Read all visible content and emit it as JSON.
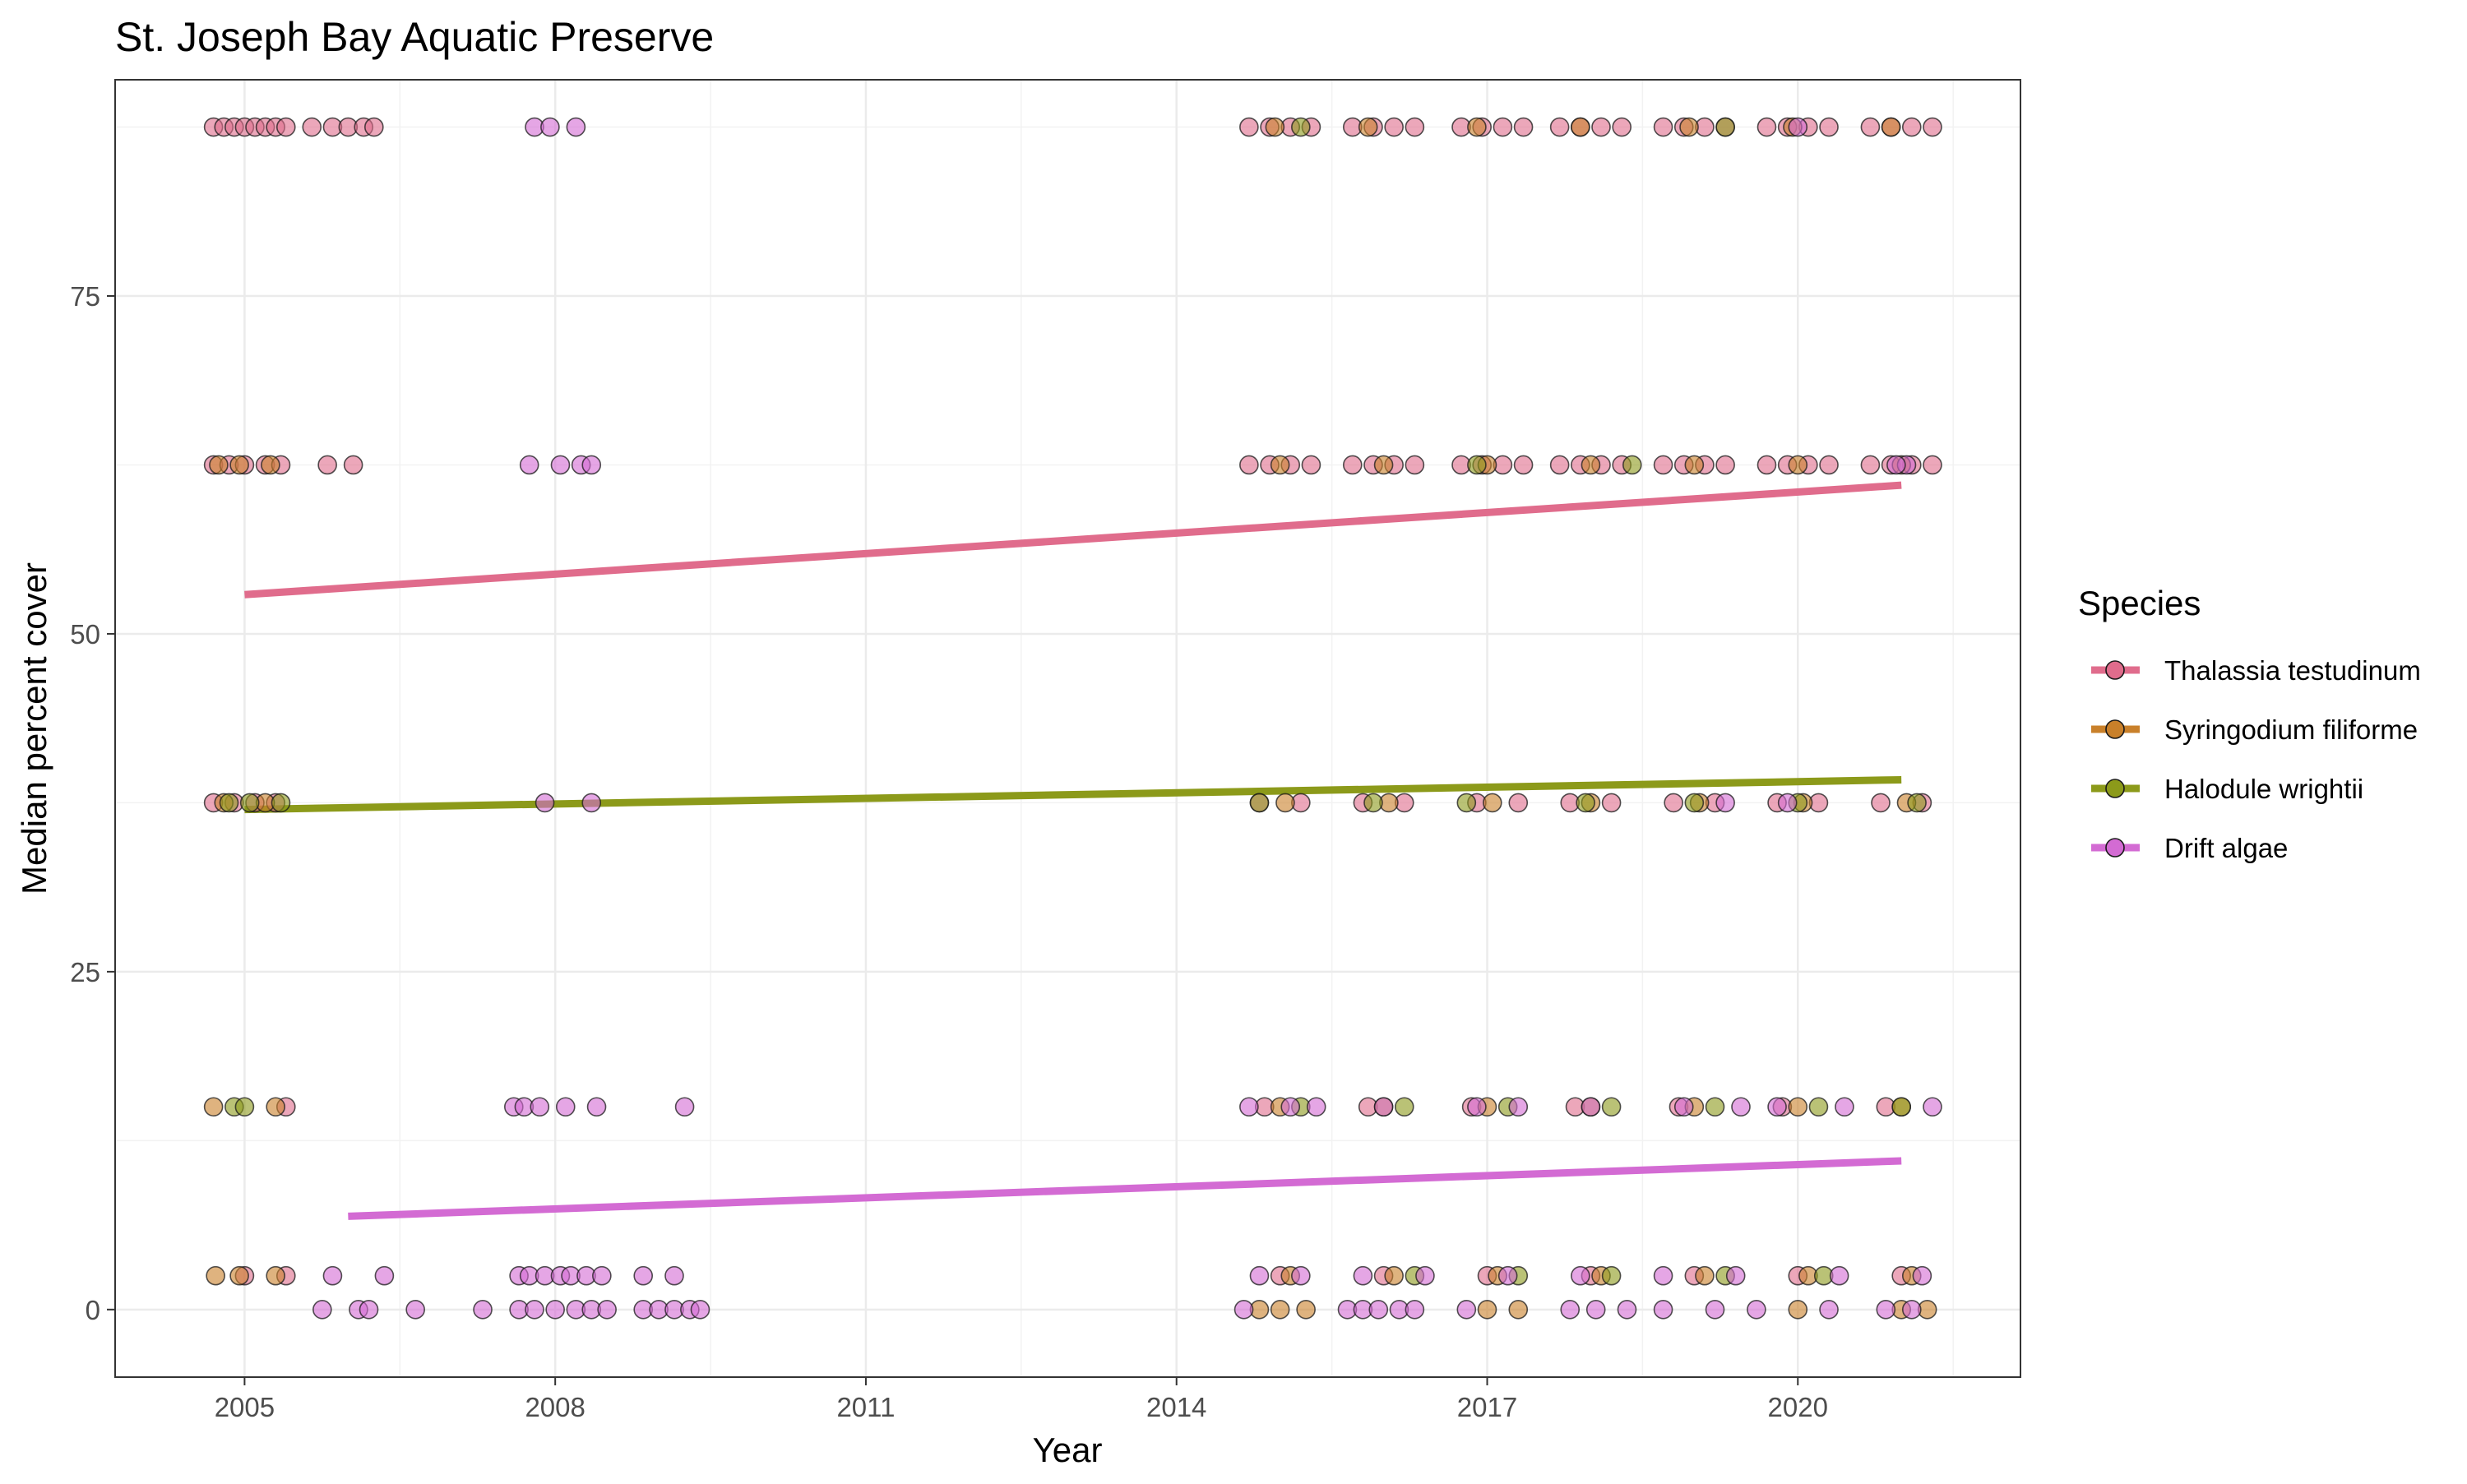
{
  "chart_data": {
    "type": "scatter",
    "title": "St. Joseph Bay Aquatic Preserve",
    "xlabel": "Year",
    "ylabel": "Median percent cover",
    "xlim": [
      2003.75,
      2022.15
    ],
    "ylim": [
      -5,
      91
    ],
    "x_ticks": [
      2005,
      2008,
      2011,
      2014,
      2017,
      2020
    ],
    "y_ticks": [
      0,
      25,
      50,
      75
    ],
    "grid": true,
    "legend_title": "Species",
    "legend_position": "right",
    "cover_levels": [
      0,
      2.5,
      15,
      37.5,
      62.5,
      87.5
    ],
    "series": [
      {
        "name": "Thalassia testudinum",
        "color": "#E06C8C",
        "trend": {
          "x": [
            2005.0,
            2021.0
          ],
          "y": [
            52.9,
            61.0
          ]
        },
        "points": [
          [
            2004.7,
            87.5
          ],
          [
            2004.8,
            87.5
          ],
          [
            2004.9,
            87.5
          ],
          [
            2005.0,
            87.5
          ],
          [
            2005.1,
            87.5
          ],
          [
            2005.2,
            87.5
          ],
          [
            2005.3,
            87.5
          ],
          [
            2005.4,
            87.5
          ],
          [
            2005.65,
            87.5
          ],
          [
            2005.85,
            87.5
          ],
          [
            2006.0,
            87.5
          ],
          [
            2006.15,
            87.5
          ],
          [
            2006.25,
            87.5
          ],
          [
            2004.7,
            62.5
          ],
          [
            2004.85,
            62.5
          ],
          [
            2005.0,
            62.5
          ],
          [
            2005.2,
            62.5
          ],
          [
            2005.35,
            62.5
          ],
          [
            2005.8,
            62.5
          ],
          [
            2006.05,
            62.5
          ],
          [
            2004.7,
            37.5
          ],
          [
            2004.9,
            37.5
          ],
          [
            2005.1,
            37.5
          ],
          [
            2005.3,
            37.5
          ],
          [
            2005.4,
            15
          ],
          [
            2005.4,
            2.5
          ],
          [
            2005.0,
            2.5
          ],
          [
            2014.7,
            87.5
          ],
          [
            2014.9,
            87.5
          ],
          [
            2015.1,
            87.5
          ],
          [
            2015.3,
            87.5
          ],
          [
            2015.7,
            87.5
          ],
          [
            2015.9,
            87.5
          ],
          [
            2016.1,
            87.5
          ],
          [
            2016.3,
            87.5
          ],
          [
            2016.75,
            87.5
          ],
          [
            2016.95,
            87.5
          ],
          [
            2017.15,
            87.5
          ],
          [
            2017.35,
            87.5
          ],
          [
            2017.7,
            87.5
          ],
          [
            2017.9,
            87.5
          ],
          [
            2018.1,
            87.5
          ],
          [
            2018.3,
            87.5
          ],
          [
            2018.7,
            87.5
          ],
          [
            2018.9,
            87.5
          ],
          [
            2019.1,
            87.5
          ],
          [
            2019.3,
            87.5
          ],
          [
            2019.7,
            87.5
          ],
          [
            2019.9,
            87.5
          ],
          [
            2020.1,
            87.5
          ],
          [
            2020.3,
            87.5
          ],
          [
            2020.7,
            87.5
          ],
          [
            2020.9,
            87.5
          ],
          [
            2021.1,
            87.5
          ],
          [
            2021.3,
            87.5
          ],
          [
            2014.7,
            62.5
          ],
          [
            2014.9,
            62.5
          ],
          [
            2015.1,
            62.5
          ],
          [
            2015.3,
            62.5
          ],
          [
            2015.7,
            62.5
          ],
          [
            2015.9,
            62.5
          ],
          [
            2016.1,
            62.5
          ],
          [
            2016.3,
            62.5
          ],
          [
            2016.75,
            62.5
          ],
          [
            2016.95,
            62.5
          ],
          [
            2017.15,
            62.5
          ],
          [
            2017.35,
            62.5
          ],
          [
            2017.7,
            62.5
          ],
          [
            2017.9,
            62.5
          ],
          [
            2018.1,
            62.5
          ],
          [
            2018.3,
            62.5
          ],
          [
            2018.7,
            62.5
          ],
          [
            2018.9,
            62.5
          ],
          [
            2019.1,
            62.5
          ],
          [
            2019.3,
            62.5
          ],
          [
            2019.7,
            62.5
          ],
          [
            2019.9,
            62.5
          ],
          [
            2020.1,
            62.5
          ],
          [
            2020.3,
            62.5
          ],
          [
            2020.7,
            62.5
          ],
          [
            2020.9,
            62.5
          ],
          [
            2021.1,
            62.5
          ],
          [
            2021.3,
            62.5
          ],
          [
            2014.8,
            37.5
          ],
          [
            2015.2,
            37.5
          ],
          [
            2015.8,
            37.5
          ],
          [
            2016.2,
            37.5
          ],
          [
            2016.9,
            37.5
          ],
          [
            2017.3,
            37.5
          ],
          [
            2017.8,
            37.5
          ],
          [
            2018.2,
            37.5
          ],
          [
            2018.8,
            37.5
          ],
          [
            2019.2,
            37.5
          ],
          [
            2019.8,
            37.5
          ],
          [
            2020.2,
            37.5
          ],
          [
            2020.8,
            37.5
          ],
          [
            2021.2,
            37.5
          ],
          [
            2014.85,
            15
          ],
          [
            2015.85,
            15
          ],
          [
            2016.85,
            15
          ],
          [
            2017.85,
            15
          ],
          [
            2018.85,
            15
          ],
          [
            2019.85,
            15
          ],
          [
            2020.85,
            15
          ],
          [
            2015.0,
            2.5
          ],
          [
            2016.0,
            2.5
          ],
          [
            2017.0,
            2.5
          ],
          [
            2018.0,
            2.5
          ],
          [
            2019.0,
            2.5
          ],
          [
            2020.0,
            2.5
          ],
          [
            2021.0,
            2.5
          ]
        ]
      },
      {
        "name": "Syringodium filiforme",
        "color": "#C9802A",
        "trend": null,
        "points": [
          [
            2004.75,
            62.5
          ],
          [
            2004.95,
            62.5
          ],
          [
            2005.25,
            62.5
          ],
          [
            2004.8,
            37.5
          ],
          [
            2005.2,
            37.5
          ],
          [
            2004.7,
            15
          ],
          [
            2005.3,
            15
          ],
          [
            2004.72,
            2.5
          ],
          [
            2004.95,
            2.5
          ],
          [
            2005.3,
            2.5
          ],
          [
            2014.95,
            87.5
          ],
          [
            2015.85,
            87.5
          ],
          [
            2016.9,
            87.5
          ],
          [
            2017.9,
            87.5
          ],
          [
            2018.95,
            87.5
          ],
          [
            2019.95,
            87.5
          ],
          [
            2020.9,
            87.5
          ],
          [
            2015.0,
            62.5
          ],
          [
            2016.0,
            62.5
          ],
          [
            2017.0,
            62.5
          ],
          [
            2018.0,
            62.5
          ],
          [
            2019.0,
            62.5
          ],
          [
            2020.0,
            62.5
          ],
          [
            2021.0,
            62.5
          ],
          [
            2015.05,
            37.5
          ],
          [
            2016.05,
            37.5
          ],
          [
            2017.05,
            37.5
          ],
          [
            2018.0,
            37.5
          ],
          [
            2019.05,
            37.5
          ],
          [
            2020.05,
            37.5
          ],
          [
            2021.05,
            37.5
          ],
          [
            2015.0,
            15
          ],
          [
            2016.0,
            15
          ],
          [
            2017.0,
            15
          ],
          [
            2018.0,
            15
          ],
          [
            2019.0,
            15
          ],
          [
            2020.0,
            15
          ],
          [
            2021.0,
            15
          ],
          [
            2015.1,
            2.5
          ],
          [
            2016.1,
            2.5
          ],
          [
            2017.1,
            2.5
          ],
          [
            2018.1,
            2.5
          ],
          [
            2019.1,
            2.5
          ],
          [
            2020.1,
            2.5
          ],
          [
            2021.1,
            2.5
          ],
          [
            2014.8,
            0
          ],
          [
            2015.0,
            0
          ],
          [
            2015.25,
            0
          ],
          [
            2017.0,
            0
          ],
          [
            2017.3,
            0
          ],
          [
            2020.0,
            0
          ],
          [
            2021.0,
            0
          ],
          [
            2021.25,
            0
          ]
        ]
      },
      {
        "name": "Halodule wrightii",
        "color": "#8C9A1A",
        "trend": {
          "x": [
            2005.0,
            2021.0
          ],
          "y": [
            37.0,
            39.2
          ]
        },
        "points": [
          [
            2004.85,
            37.5
          ],
          [
            2005.05,
            37.5
          ],
          [
            2005.35,
            37.5
          ],
          [
            2004.9,
            15
          ],
          [
            2005.0,
            15
          ],
          [
            2014.8,
            37.5
          ],
          [
            2015.9,
            37.5
          ],
          [
            2016.8,
            37.5
          ],
          [
            2017.95,
            37.5
          ],
          [
            2019.0,
            37.5
          ],
          [
            2020.0,
            37.5
          ],
          [
            2021.15,
            37.5
          ],
          [
            2015.2,
            15
          ],
          [
            2016.2,
            15
          ],
          [
            2017.2,
            15
          ],
          [
            2018.2,
            15
          ],
          [
            2019.2,
            15
          ],
          [
            2020.2,
            15
          ],
          [
            2021.0,
            15
          ],
          [
            2016.3,
            2.5
          ],
          [
            2017.3,
            2.5
          ],
          [
            2018.2,
            2.5
          ],
          [
            2019.3,
            2.5
          ],
          [
            2020.25,
            2.5
          ],
          [
            2016.9,
            62.5
          ],
          [
            2018.4,
            62.5
          ],
          [
            2015.2,
            87.5
          ],
          [
            2019.3,
            87.5
          ]
        ]
      },
      {
        "name": "Drift algae",
        "color": "#D36BD3",
        "trend": {
          "x": [
            2006.0,
            2021.0
          ],
          "y": [
            6.9,
            11.0
          ]
        },
        "points": [
          [
            2007.8,
            87.5
          ],
          [
            2007.95,
            87.5
          ],
          [
            2008.2,
            87.5
          ],
          [
            2007.75,
            62.5
          ],
          [
            2008.05,
            62.5
          ],
          [
            2008.25,
            62.5
          ],
          [
            2008.35,
            62.5
          ],
          [
            2007.9,
            37.5
          ],
          [
            2008.35,
            37.5
          ],
          [
            2007.6,
            15
          ],
          [
            2007.7,
            15
          ],
          [
            2007.85,
            15
          ],
          [
            2008.1,
            15
          ],
          [
            2008.4,
            15
          ],
          [
            2009.25,
            15
          ],
          [
            2005.85,
            2.5
          ],
          [
            2006.35,
            2.5
          ],
          [
            2007.65,
            2.5
          ],
          [
            2007.75,
            2.5
          ],
          [
            2007.9,
            2.5
          ],
          [
            2008.05,
            2.5
          ],
          [
            2008.15,
            2.5
          ],
          [
            2008.3,
            2.5
          ],
          [
            2008.45,
            2.5
          ],
          [
            2008.85,
            2.5
          ],
          [
            2009.15,
            2.5
          ],
          [
            2005.75,
            0
          ],
          [
            2006.1,
            0
          ],
          [
            2006.2,
            0
          ],
          [
            2006.65,
            0
          ],
          [
            2007.3,
            0
          ],
          [
            2007.65,
            0
          ],
          [
            2007.8,
            0
          ],
          [
            2008.0,
            0
          ],
          [
            2008.2,
            0
          ],
          [
            2008.35,
            0
          ],
          [
            2008.5,
            0
          ],
          [
            2008.85,
            0
          ],
          [
            2009.0,
            0
          ],
          [
            2009.15,
            0
          ],
          [
            2009.3,
            0
          ],
          [
            2009.4,
            0
          ],
          [
            2014.7,
            15
          ],
          [
            2015.1,
            15
          ],
          [
            2015.35,
            15
          ],
          [
            2016.0,
            15
          ],
          [
            2016.9,
            15
          ],
          [
            2017.3,
            15
          ],
          [
            2018.0,
            15
          ],
          [
            2018.9,
            15
          ],
          [
            2019.45,
            15
          ],
          [
            2019.8,
            15
          ],
          [
            2020.45,
            15
          ],
          [
            2021.3,
            15
          ],
          [
            2014.8,
            2.5
          ],
          [
            2015.2,
            2.5
          ],
          [
            2015.8,
            2.5
          ],
          [
            2016.4,
            2.5
          ],
          [
            2017.2,
            2.5
          ],
          [
            2017.9,
            2.5
          ],
          [
            2018.7,
            2.5
          ],
          [
            2019.4,
            2.5
          ],
          [
            2020.4,
            2.5
          ],
          [
            2021.2,
            2.5
          ],
          [
            2014.65,
            0
          ],
          [
            2015.65,
            0
          ],
          [
            2015.8,
            0
          ],
          [
            2015.95,
            0
          ],
          [
            2016.15,
            0
          ],
          [
            2016.3,
            0
          ],
          [
            2016.8,
            0
          ],
          [
            2017.8,
            0
          ],
          [
            2018.05,
            0
          ],
          [
            2018.35,
            0
          ],
          [
            2018.7,
            0
          ],
          [
            2019.2,
            0
          ],
          [
            2019.6,
            0
          ],
          [
            2020.3,
            0
          ],
          [
            2020.85,
            0
          ],
          [
            2021.1,
            0
          ],
          [
            2019.3,
            37.5
          ],
          [
            2019.9,
            37.5
          ],
          [
            2021.05,
            62.5
          ],
          [
            2020.95,
            62.5
          ],
          [
            2020.0,
            87.5
          ]
        ]
      }
    ]
  }
}
